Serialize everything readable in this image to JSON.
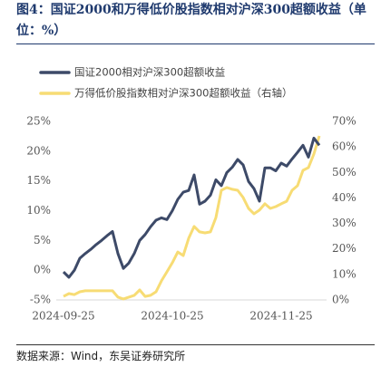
{
  "chart_data": {
    "type": "line",
    "title": "图4：国证2000和万得低价股指数相对沪深300超额收益（单位：%）",
    "source": "数据来源：Wind，东吴证券研究所",
    "categories": [
      "2024-09-25",
      null,
      null,
      null,
      null,
      null,
      null,
      null,
      null,
      null,
      null,
      null,
      null,
      null,
      null,
      null,
      null,
      null,
      null,
      null,
      "2024-10-25",
      null,
      null,
      null,
      null,
      null,
      null,
      null,
      null,
      null,
      null,
      null,
      null,
      null,
      null,
      null,
      null,
      null,
      null,
      null,
      "2024-11-25",
      null,
      null,
      null,
      null,
      null,
      null,
      null
    ],
    "series": [
      {
        "name": "国证2000相对沪深300超额收益",
        "color": "#3d4a68",
        "axis": "y",
        "values": [
          -0.3,
          -1.2,
          0,
          2,
          2.8,
          3.5,
          4.3,
          5,
          5.8,
          6.5,
          2.8,
          0.3,
          1.2,
          2.8,
          5,
          6,
          7.3,
          8.4,
          8.8,
          8.5,
          10,
          11.9,
          13.1,
          13.4,
          16,
          11.1,
          11.6,
          12.6,
          15.2,
          14.2,
          16.4,
          17.3,
          18.6,
          17.7,
          14.9,
          13.7,
          11.6,
          17.2,
          17.2,
          16.7,
          18,
          17.5,
          18.7,
          19.8,
          21,
          19,
          22.2,
          21
        ]
      },
      {
        "name": "万得低价股指数相对沪深300超额收益（右轴）",
        "color": "#f7dc74",
        "axis": "y2",
        "values": [
          1.4,
          2.5,
          2.1,
          3.2,
          3.6,
          3.6,
          3.6,
          3.6,
          3.6,
          3.6,
          1.1,
          0.4,
          1.1,
          1.8,
          3.9,
          1.4,
          1.8,
          3.2,
          7.5,
          11,
          14.6,
          18.8,
          17.4,
          24.2,
          28.8,
          26.7,
          26.3,
          26.7,
          32.3,
          43,
          44.1,
          43.4,
          43,
          40.2,
          35.9,
          33.8,
          35.2,
          37.7,
          35.9,
          36.6,
          37.7,
          38.7,
          43,
          44.8,
          50.8,
          51.9,
          57.2,
          64.3
        ]
      }
    ],
    "ylim": [
      -5,
      25
    ],
    "yticks": [
      {
        "value": -5,
        "label": "-5%"
      },
      {
        "value": 0,
        "label": "0%"
      },
      {
        "value": 5,
        "label": "5%"
      },
      {
        "value": 10,
        "label": "10%"
      },
      {
        "value": 15,
        "label": "15%"
      },
      {
        "value": 20,
        "label": "20%"
      },
      {
        "value": 25,
        "label": "25%"
      }
    ],
    "y2lim": [
      0,
      70
    ],
    "y2ticks": [
      {
        "value": 0,
        "label": "0%"
      },
      {
        "value": 10,
        "label": "10%"
      },
      {
        "value": 20,
        "label": "20%"
      },
      {
        "value": 30,
        "label": "30%"
      },
      {
        "value": 40,
        "label": "40%"
      },
      {
        "value": 50,
        "label": "50%"
      },
      {
        "value": 60,
        "label": "60%"
      },
      {
        "value": 70,
        "label": "70%"
      }
    ],
    "legend": "top-left",
    "grid": false
  }
}
